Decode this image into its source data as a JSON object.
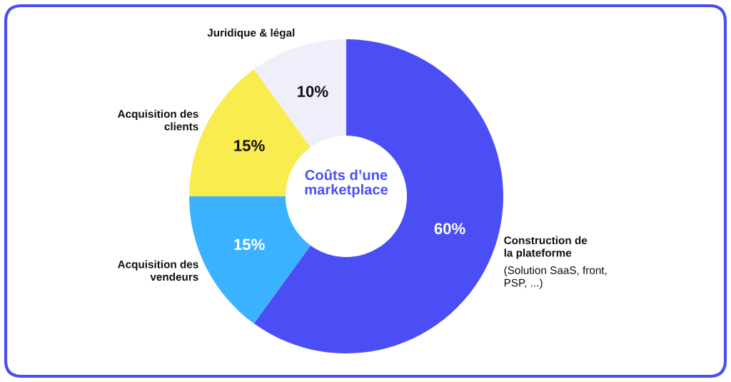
{
  "chart_data": {
    "type": "donut",
    "title": "Coûts d’une marketplace",
    "categories": [
      "Construction de\nla plateforme",
      "Acquisition des\nvendeurs",
      "Acquisition des\nclients",
      "Juridique & légal"
    ],
    "values": [
      60,
      15,
      15,
      10
    ],
    "value_labels": [
      "60%",
      "15%",
      "15%",
      "10%"
    ],
    "colors": [
      "#4b4ef5",
      "#3bb2ff",
      "#f9ec4f",
      "#eeeffa"
    ],
    "annotations": [
      "(Solution SaaS, front,\nPSP, ...)"
    ],
    "legend": false
  }
}
